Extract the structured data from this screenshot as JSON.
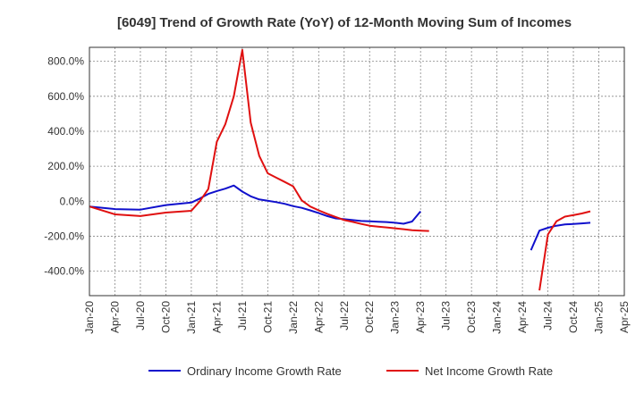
{
  "chart_data": {
    "type": "line",
    "title": "[6049]  Trend of Growth Rate (YoY) of 12-Month Moving Sum of Incomes",
    "xlabel": "",
    "ylabel": "",
    "x_ticks": [
      "Jan-20",
      "Apr-20",
      "Jul-20",
      "Oct-20",
      "Jan-21",
      "Apr-21",
      "Jul-21",
      "Oct-21",
      "Jan-22",
      "Apr-22",
      "Jul-22",
      "Oct-22",
      "Jan-23",
      "Apr-23",
      "Jul-23",
      "Oct-23",
      "Jan-24",
      "Apr-24",
      "Jul-24",
      "Oct-24",
      "Jan-25",
      "Apr-25"
    ],
    "y_ticks": [
      "800.0%",
      "600.0%",
      "400.0%",
      "200.0%",
      "0.0%",
      "-200.0%",
      "-400.0%"
    ],
    "ylim": [
      -540,
      880
    ],
    "grid": true,
    "legend_position": "bottom",
    "series": [
      {
        "name": "Ordinary Income Growth Rate",
        "color": "#1010cc",
        "segments": [
          [
            [
              "2020-01",
              -30
            ],
            [
              "2020-04",
              -45
            ],
            [
              "2020-07",
              -48
            ],
            [
              "2020-10",
              -22
            ],
            [
              "2021-01",
              -8
            ],
            [
              "2021-02",
              15
            ],
            [
              "2021-03",
              42
            ],
            [
              "2021-04",
              58
            ],
            [
              "2021-05",
              72
            ],
            [
              "2021-06",
              90
            ],
            [
              "2021-07",
              55
            ],
            [
              "2021-08",
              28
            ],
            [
              "2021-09",
              10
            ],
            [
              "2021-10",
              3
            ],
            [
              "2021-11",
              -5
            ],
            [
              "2021-12",
              -15
            ],
            [
              "2022-01",
              -28
            ],
            [
              "2022-02",
              -38
            ],
            [
              "2022-03",
              -52
            ],
            [
              "2022-04",
              -68
            ],
            [
              "2022-05",
              -85
            ],
            [
              "2022-06",
              -98
            ],
            [
              "2022-07",
              -103
            ],
            [
              "2022-08",
              -108
            ],
            [
              "2022-09",
              -113
            ],
            [
              "2022-10",
              -115
            ],
            [
              "2022-11",
              -117
            ],
            [
              "2022-12",
              -119
            ],
            [
              "2023-01",
              -123
            ],
            [
              "2023-02",
              -129
            ],
            [
              "2023-03",
              -116
            ],
            [
              "2023-04",
              -58
            ]
          ],
          [
            [
              "2024-05",
              -280
            ],
            [
              "2024-06",
              -168
            ],
            [
              "2024-07",
              -152
            ],
            [
              "2024-08",
              -140
            ],
            [
              "2024-09",
              -133
            ],
            [
              "2024-10",
              -130
            ],
            [
              "2024-11",
              -127
            ],
            [
              "2024-12",
              -123
            ]
          ]
        ]
      },
      {
        "name": "Net Income Growth Rate",
        "color": "#e01010",
        "segments": [
          [
            [
              "2020-01",
              -30
            ],
            [
              "2020-04",
              -75
            ],
            [
              "2020-07",
              -85
            ],
            [
              "2020-10",
              -65
            ],
            [
              "2021-01",
              -55
            ],
            [
              "2021-02",
              0
            ],
            [
              "2021-03",
              70
            ],
            [
              "2021-04",
              340
            ],
            [
              "2021-05",
              440
            ],
            [
              "2021-06",
              600
            ],
            [
              "2021-07",
              865
            ],
            [
              "2021-08",
              450
            ],
            [
              "2021-09",
              260
            ],
            [
              "2021-10",
              160
            ],
            [
              "2021-11",
              135
            ],
            [
              "2021-12",
              110
            ],
            [
              "2022-01",
              85
            ],
            [
              "2022-02",
              5
            ],
            [
              "2022-03",
              -30
            ],
            [
              "2022-04",
              -52
            ],
            [
              "2022-05",
              -72
            ],
            [
              "2022-06",
              -90
            ],
            [
              "2022-07",
              -108
            ],
            [
              "2022-08",
              -118
            ],
            [
              "2022-09",
              -130
            ],
            [
              "2022-10",
              -140
            ],
            [
              "2022-11",
              -145
            ],
            [
              "2022-12",
              -150
            ],
            [
              "2023-01",
              -155
            ],
            [
              "2023-02",
              -160
            ],
            [
              "2023-03",
              -166
            ],
            [
              "2023-04",
              -168
            ],
            [
              "2023-05",
              -170
            ]
          ],
          [
            [
              "2024-06",
              -510
            ],
            [
              "2024-07",
              -190
            ],
            [
              "2024-08",
              -115
            ],
            [
              "2024-09",
              -88
            ],
            [
              "2024-10",
              -80
            ],
            [
              "2024-11",
              -70
            ],
            [
              "2024-12",
              -58
            ]
          ]
        ]
      }
    ]
  }
}
